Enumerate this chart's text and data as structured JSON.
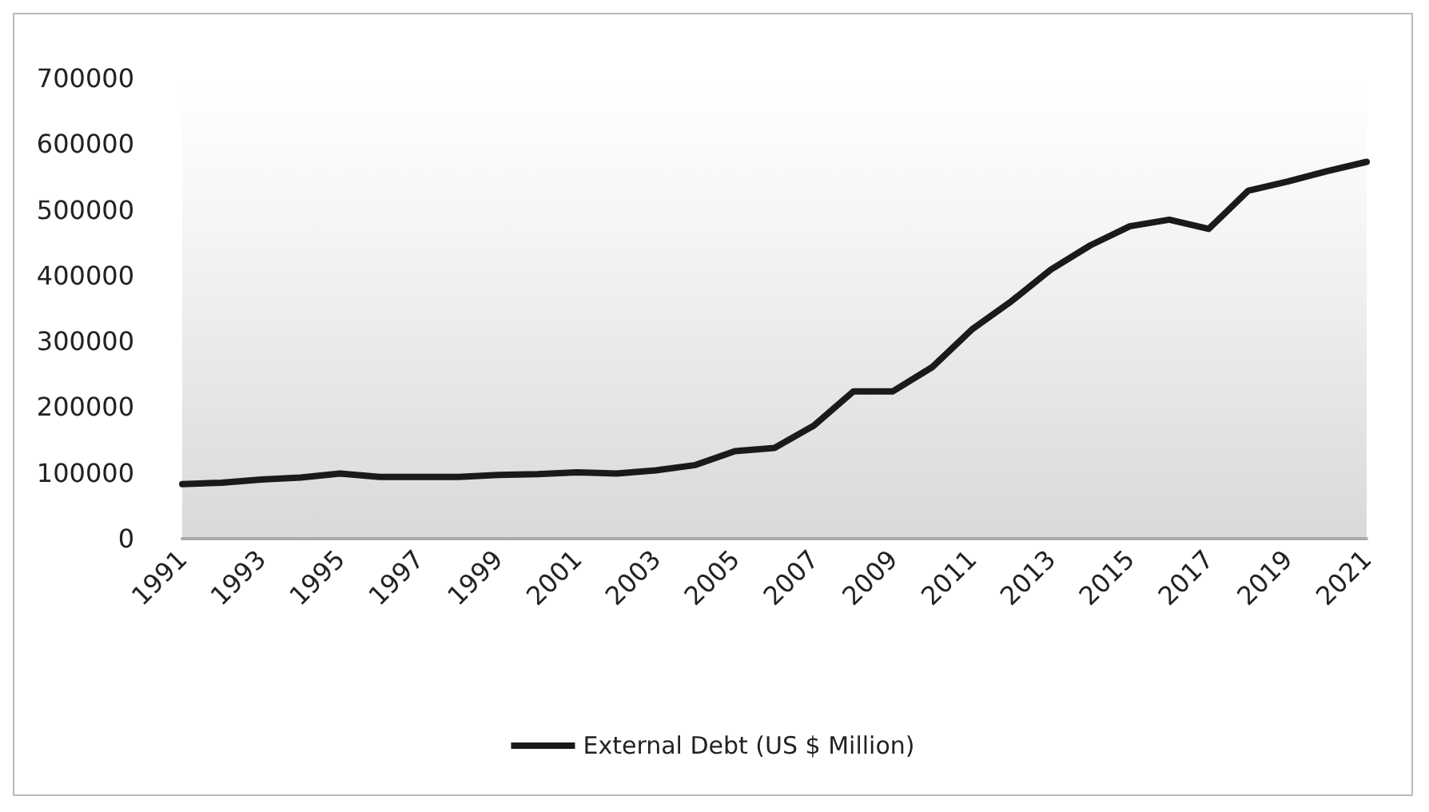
{
  "chart_data": {
    "type": "line",
    "categories": [
      "1991",
      null,
      "1993",
      null,
      "1995",
      null,
      "1997",
      null,
      "1999",
      null,
      "2001",
      null,
      "2003",
      null,
      "2005",
      null,
      "2007",
      null,
      "2009",
      null,
      "2011",
      null,
      "2013",
      null,
      "2015",
      null,
      "2017",
      null,
      "2019",
      null,
      "2021"
    ],
    "series": [
      {
        "name": "External Debt (US $ Million)",
        "color": "#1a1a1a",
        "values": [
          83000,
          85000,
          90000,
          93000,
          99000,
          94000,
          94000,
          94000,
          97000,
          98000,
          101000,
          99000,
          104000,
          112000,
          133000,
          138000,
          172000,
          224000,
          224000,
          261000,
          318000,
          361000,
          409000,
          446000,
          475000,
          485000,
          471000,
          529000,
          543000,
          559000,
          573000
        ]
      }
    ],
    "ylim": [
      0,
      700000
    ],
    "yticks": [
      0,
      100000,
      200000,
      300000,
      400000,
      500000,
      600000,
      700000
    ],
    "grid": false,
    "legend": "bottom",
    "marker": "none",
    "line_style": "solid"
  }
}
